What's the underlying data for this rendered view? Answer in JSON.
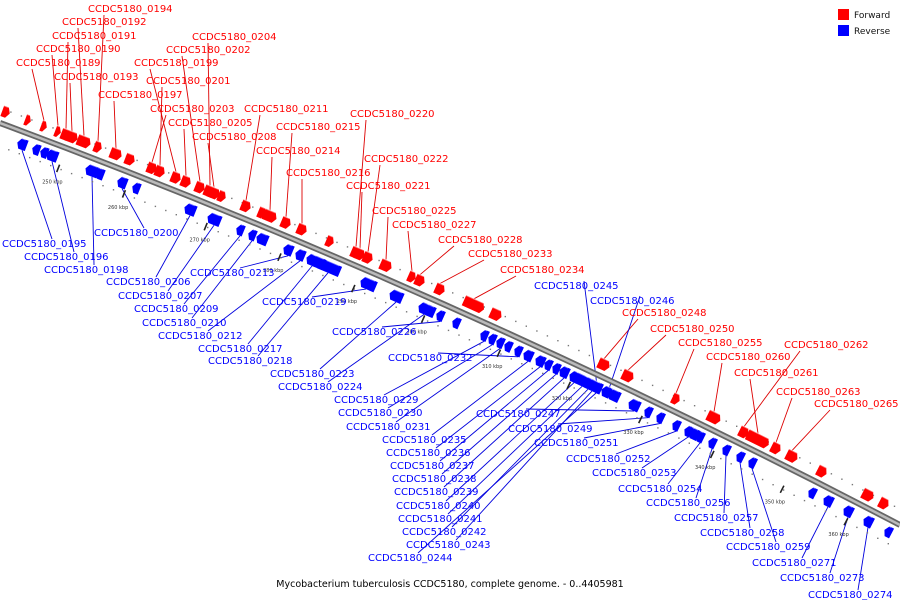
{
  "caption": "Mycobacterium tuberculosis CCDC5180, complete genome. - 0..4405981",
  "legend": {
    "forward_label": "Forward",
    "reverse_label": "Reverse",
    "forward_color": "#ff0000",
    "reverse_color": "#0000ff"
  },
  "colors": {
    "axis": "#888888",
    "forward_line": "#dd0000",
    "reverse_line": "#0000dd"
  },
  "scale_ticks": [
    "250 kbp",
    "260 kbp",
    "270 kbp",
    "280 kbp",
    "290 kbp",
    "300 kbp",
    "310 kbp",
    "320 kbp",
    "330 kbp",
    "340 kbp",
    "350 kbp",
    "360 kbp"
  ],
  "forward_labels": [
    "CCDC5180_0194",
    "CCDC5180_0192",
    "CCDC5180_0191",
    "CCDC5180_0190",
    "CCDC5180_0189",
    "CCDC5180_0193",
    "CCDC5180_0197",
    "CCDC5180_0204",
    "CCDC5180_0202",
    "CCDC5180_0199",
    "CCDC5180_0201",
    "CCDC5180_0203",
    "CCDC5180_0205",
    "CCDC5180_0208",
    "CCDC5180_0211",
    "CCDC5180_0215",
    "CCDC5180_0214",
    "CCDC5180_0220",
    "CCDC5180_0222",
    "CCDC5180_0216",
    "CCDC5180_0221",
    "CCDC5180_0225",
    "CCDC5180_0227",
    "CCDC5180_0228",
    "CCDC5180_0233",
    "CCDC5180_0234",
    "CCDC5180_0248",
    "CCDC5180_0250",
    "CCDC5180_0255",
    "CCDC5180_0260",
    "CCDC5180_0262",
    "CCDC5180_0261",
    "CCDC5180_0263",
    "CCDC5180_0265"
  ],
  "reverse_labels": [
    "CCDC5180_0195",
    "CCDC5180_0196",
    "CCDC5180_0198",
    "CCDC5180_0200",
    "CCDC5180_0206",
    "CCDC5180_0207",
    "CCDC5180_0209",
    "CCDC5180_0210",
    "CCDC5180_0213",
    "CCDC5180_0212",
    "CCDC5180_0217",
    "CCDC5180_0218",
    "CCDC5180_0219",
    "CCDC5180_0223",
    "CCDC5180_0224",
    "CCDC5180_0226",
    "CCDC5180_0229",
    "CCDC5180_0230",
    "CCDC5180_0231",
    "CCDC5180_0232",
    "CCDC5180_0235",
    "CCDC5180_0236",
    "CCDC5180_0237",
    "CCDC5180_0238",
    "CCDC5180_0239",
    "CCDC5180_0240",
    "CCDC5180_0241",
    "CCDC5180_0242",
    "CCDC5180_0243",
    "CCDC5180_0244",
    "CCDC5180_0245",
    "CCDC5180_0246",
    "CCDC5180_0247",
    "CCDC5180_0249",
    "CCDC5180_0251",
    "CCDC5180_0252",
    "CCDC5180_0253",
    "CCDC5180_0254",
    "CCDC5180_0256",
    "CCDC5180_0257",
    "CCDC5180_0258",
    "CCDC5180_0259",
    "CCDC5180_0271",
    "CCDC5180_0273",
    "CCDC5180_0274"
  ]
}
